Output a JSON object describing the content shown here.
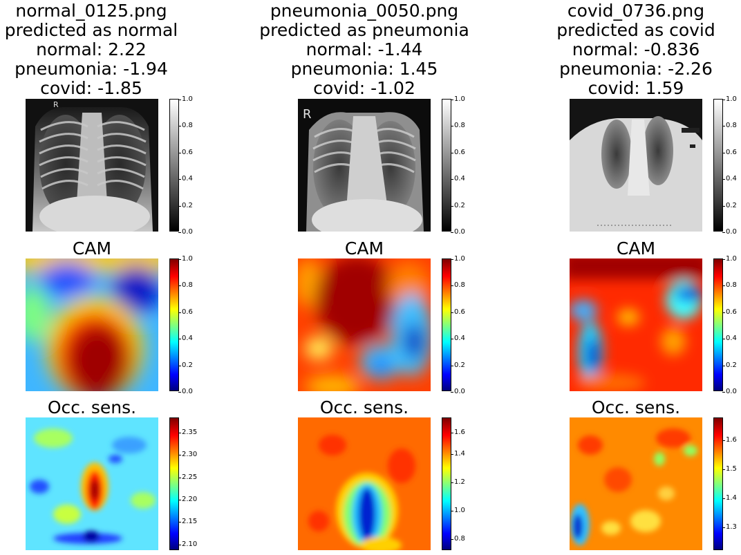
{
  "columns": [
    {
      "filename": "normal_0125.png",
      "prediction": "predicted as normal",
      "scores": [
        "normal: 2.22",
        "pneumonia: -1.94",
        "covid: -1.85"
      ],
      "xray_colorbar": [
        "1.0",
        "0.8",
        "0.6",
        "0.4",
        "0.2",
        "0.0"
      ],
      "cam_title": "CAM",
      "cam_colorbar": [
        "1.0",
        "0.8",
        "0.6",
        "0.4",
        "0.2",
        "0.0"
      ],
      "occ_title": "Occ. sens.",
      "occ_colorbar": [
        "2.35",
        "2.30",
        "2.25",
        "2.20",
        "2.15",
        "2.10"
      ]
    },
    {
      "filename": "pneumonia_0050.png",
      "prediction": "predicted as pneumonia",
      "scores": [
        "normal: -1.44",
        "pneumonia: 1.45",
        "covid: -1.02"
      ],
      "xray_colorbar": [
        "1.0",
        "0.8",
        "0.6",
        "0.4",
        "0.2",
        "0.0"
      ],
      "cam_title": "CAM",
      "cam_colorbar": [
        "1.0",
        "0.8",
        "0.6",
        "0.4",
        "0.2",
        "0.0"
      ],
      "occ_title": "Occ. sens.",
      "occ_colorbar": [
        "1.6",
        "1.4",
        "1.2",
        "1.0",
        "0.8"
      ]
    },
    {
      "filename": "covid_0736.png",
      "prediction": "predicted as covid",
      "scores": [
        "normal: -0.836",
        "pneumonia: -2.26",
        "covid: 1.59"
      ],
      "xray_colorbar": [
        "1.0",
        "0.8",
        "0.6",
        "0.4",
        "0.2",
        "0.0"
      ],
      "cam_title": "CAM",
      "cam_colorbar": [
        "1.0",
        "0.8",
        "0.6",
        "0.4",
        "0.2",
        "0.0"
      ],
      "occ_title": "Occ. sens.",
      "occ_colorbar": [
        "1.6",
        "1.5",
        "1.4",
        "1.3"
      ]
    }
  ],
  "xray_markers": [
    "R",
    "R"
  ],
  "colormaps": {
    "gray": [
      "#000000",
      "#ffffff"
    ],
    "jet": [
      "#00007f",
      "#0000ff",
      "#00ffff",
      "#ffff00",
      "#ff0000",
      "#7f0000"
    ]
  }
}
